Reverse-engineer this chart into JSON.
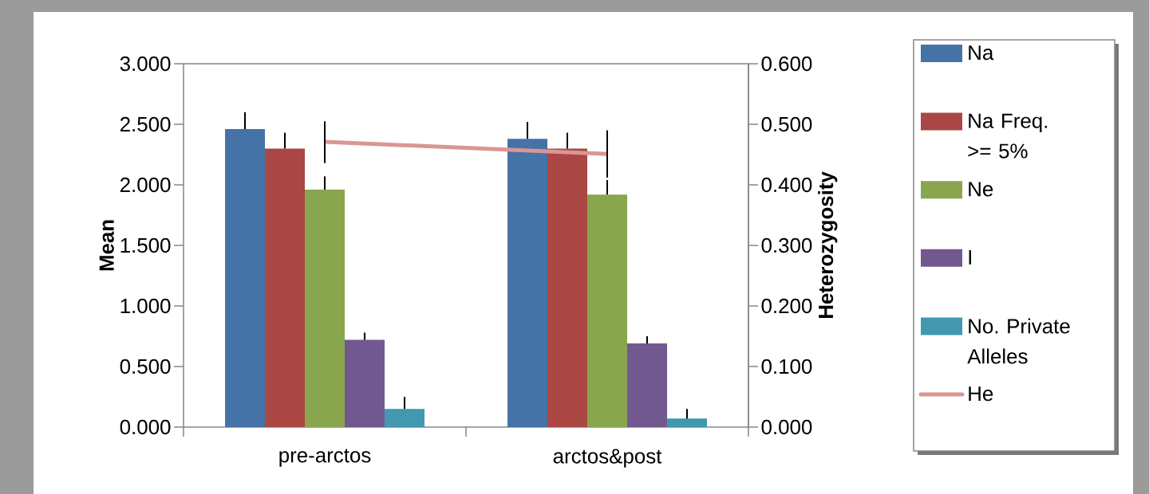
{
  "chart_data": {
    "type": "bar",
    "categories": [
      "pre-arctos",
      "arctos&post"
    ],
    "ylabel": "Mean",
    "y2label": "Heterozygosity",
    "ylim": [
      0,
      3
    ],
    "yticks": [
      {
        "value": 0,
        "label": "0.000"
      },
      {
        "value": 0.5,
        "label": "0.500"
      },
      {
        "value": 1,
        "label": "1.000"
      },
      {
        "value": 1.5,
        "label": "1.500"
      },
      {
        "value": 2,
        "label": "2.000"
      },
      {
        "value": 2.5,
        "label": "2.500"
      },
      {
        "value": 3,
        "label": "3.000"
      }
    ],
    "y2lim": [
      0,
      0.6
    ],
    "y2ticks": [
      {
        "value": 0,
        "label": "0.000"
      },
      {
        "value": 0.1,
        "label": "0.100"
      },
      {
        "value": 0.2,
        "label": "0.200"
      },
      {
        "value": 0.3,
        "label": "0.300"
      },
      {
        "value": 0.4,
        "label": "0.400"
      },
      {
        "value": 0.5,
        "label": "0.500"
      },
      {
        "value": 0.6,
        "label": "0.600"
      }
    ],
    "legend": "right",
    "series": [
      {
        "name": "Na",
        "color": "#4572a7",
        "values": [
          2.46,
          2.38
        ],
        "errors": [
          [
            2.46,
            2.6
          ],
          [
            2.38,
            2.52
          ]
        ]
      },
      {
        "name": "Na Freq. >= 5%",
        "color": "#aa4643",
        "values": [
          2.3,
          2.3
        ],
        "errors": [
          [
            2.3,
            2.43
          ],
          [
            2.3,
            2.43
          ]
        ]
      },
      {
        "name": "Ne",
        "color": "#89a54e",
        "values": [
          1.96,
          1.92
        ],
        "errors": [
          [
            1.96,
            2.07
          ],
          [
            1.92,
            2.04
          ]
        ]
      },
      {
        "name": "I",
        "color": "#71588f",
        "values": [
          0.72,
          0.69
        ],
        "errors": [
          [
            0.72,
            0.78
          ],
          [
            0.69,
            0.75
          ]
        ]
      },
      {
        "name": "No. Private Alleles",
        "color": "#4198af",
        "values": [
          0.15,
          0.07
        ],
        "errors": [
          [
            0.15,
            0.25
          ],
          [
            0.07,
            0.15
          ]
        ]
      },
      {
        "name": "He",
        "type": "line",
        "axis": "y2",
        "color": "#d99694",
        "values": [
          0.471,
          0.451
        ],
        "errors": [
          [
            0.436,
            0.505
          ],
          [
            0.412,
            0.49
          ]
        ]
      }
    ]
  }
}
